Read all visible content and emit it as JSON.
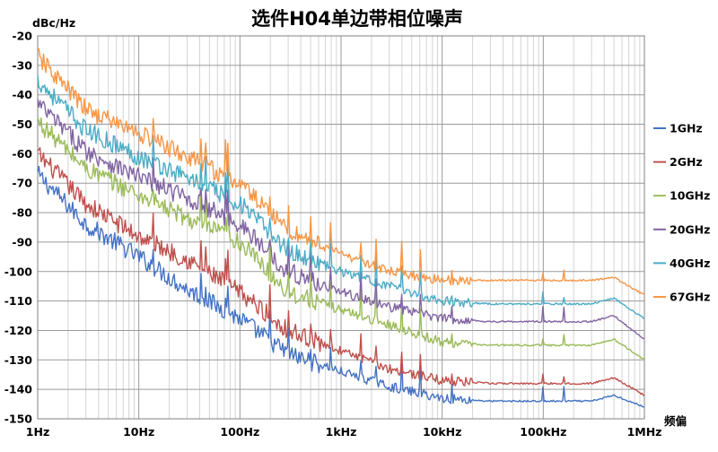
{
  "chart_data": {
    "type": "line",
    "title": "选件H04单边带相位噪声",
    "ylabel": "dBc/Hz",
    "xlabel": "频偏",
    "x_scale": "log",
    "xlim": [
      1,
      1000000
    ],
    "ylim": [
      -150,
      -20
    ],
    "yticks": [
      "-20",
      "-30",
      "-40",
      "-50",
      "-60",
      "-70",
      "-80",
      "-90",
      "-100",
      "-110",
      "-120",
      "-130",
      "-140",
      "-150"
    ],
    "xticks": [
      "1Hz",
      "10Hz",
      "100Hz",
      "1kHz",
      "10kHz",
      "100kHz",
      "1MHz"
    ],
    "grid": true,
    "legend": "right",
    "x": [
      1,
      3,
      10,
      30,
      100,
      300,
      1000,
      3000,
      10000,
      30000,
      100000,
      300000,
      500000,
      1000000
    ],
    "series": [
      {
        "name": "1GHz",
        "color": "#4472c4",
        "values": [
          -67,
          -84,
          -95,
          -106,
          -116,
          -128,
          -134,
          -139,
          -143,
          -144,
          -144,
          -144,
          -142,
          -146
        ]
      },
      {
        "name": "2GHz",
        "color": "#c0504d",
        "values": [
          -60,
          -77,
          -88,
          -96,
          -107,
          -120,
          -127,
          -133,
          -137,
          -138,
          -138,
          -138,
          -136,
          -142
        ]
      },
      {
        "name": "10GHz",
        "color": "#9bbb59",
        "values": [
          -49,
          -65,
          -74,
          -82,
          -90,
          -107,
          -113,
          -118,
          -124,
          -125,
          -125,
          -125,
          -123,
          -130
        ]
      },
      {
        "name": "20GHz",
        "color": "#8064a2",
        "values": [
          -43,
          -59,
          -68,
          -75,
          -84,
          -100,
          -107,
          -112,
          -116,
          -117,
          -117,
          -117,
          -115,
          -123
        ]
      },
      {
        "name": "40GHz",
        "color": "#4bacc6",
        "values": [
          -35,
          -52,
          -61,
          -68,
          -77,
          -93,
          -100,
          -105,
          -110,
          -111,
          -111,
          -111,
          -109,
          -116
        ]
      },
      {
        "name": "67GHz",
        "color": "#f79646",
        "values": [
          -27,
          -45,
          -53,
          -61,
          -70,
          -86,
          -94,
          -100,
          -103,
          -103,
          -103,
          -103,
          -102,
          -108
        ]
      }
    ]
  }
}
